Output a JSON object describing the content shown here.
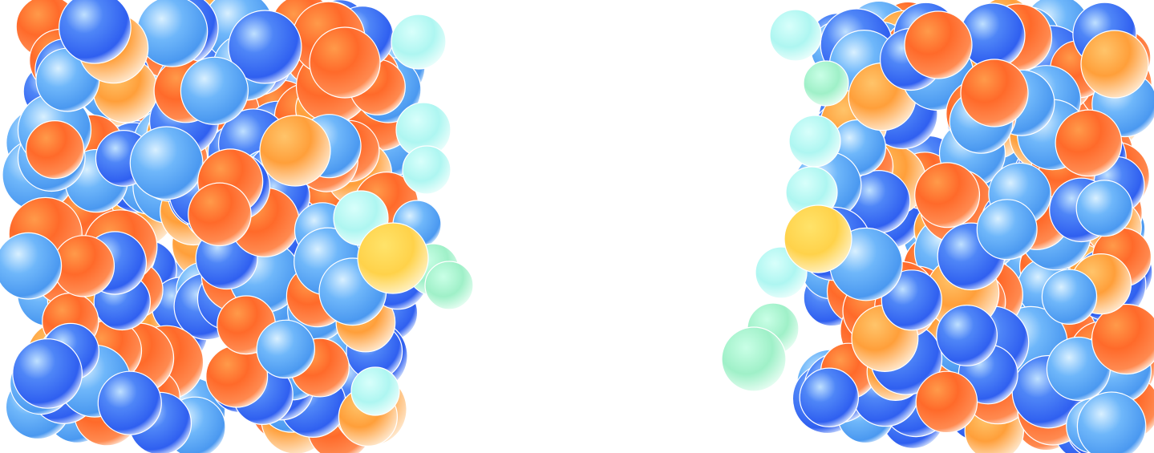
{
  "scene": {
    "background": "#ffffff",
    "palette": {
      "blue": "#2f5ff0",
      "sky": "#5aa8f5",
      "orange": "#ff6a2a",
      "amber": "#ffb347",
      "yellow": "#ffd94a",
      "cyan": "#aef6f1",
      "mint": "#9ff0c8"
    },
    "slabs": [
      {
        "name": "left-slab"
      },
      {
        "name": "right-slab"
      }
    ]
  }
}
